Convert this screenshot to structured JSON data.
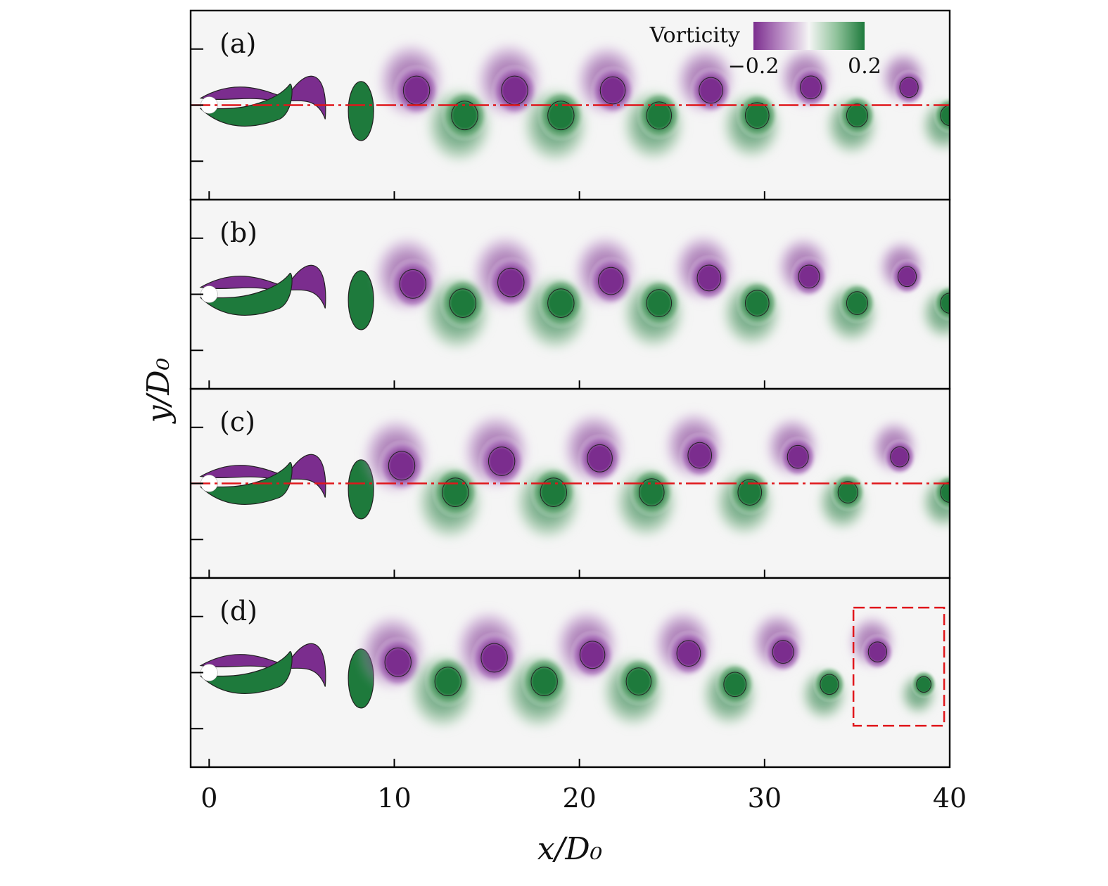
{
  "chart_data": {
    "type": "heatmap",
    "description_free": true,
    "xlabel": "x/D₀",
    "ylabel": "y/D₀",
    "xlim": [
      -1,
      40
    ],
    "x_ticks": [
      0,
      10,
      20,
      30,
      40
    ],
    "x_tick_labels": [
      "0",
      "10",
      "20",
      "30",
      "40"
    ],
    "colorbar": {
      "title": "Vorticity",
      "min": -0.2,
      "max": 0.2,
      "tick_labels": [
        "−0.2",
        "0.2"
      ],
      "color_neg": "#7b2d8e",
      "color_zero": "#f5f5f5",
      "color_pos": "#1e7a3c"
    },
    "panels": [
      {
        "label": "(a)",
        "centerline": true,
        "dashed_box": null,
        "vortices": [
          {
            "x": 11.2,
            "y": 0.5,
            "sign": -1,
            "size": 1.0
          },
          {
            "x": 13.8,
            "y": -0.35,
            "sign": 1,
            "size": 1.0
          },
          {
            "x": 16.5,
            "y": 0.5,
            "sign": -1,
            "size": 1.0
          },
          {
            "x": 19.0,
            "y": -0.35,
            "sign": 1,
            "size": 1.0
          },
          {
            "x": 21.8,
            "y": 0.5,
            "sign": -1,
            "size": 0.95
          },
          {
            "x": 24.3,
            "y": -0.35,
            "sign": 1,
            "size": 0.95
          },
          {
            "x": 27.1,
            "y": 0.5,
            "sign": -1,
            "size": 0.9
          },
          {
            "x": 29.6,
            "y": -0.35,
            "sign": 1,
            "size": 0.9
          },
          {
            "x": 32.5,
            "y": 0.6,
            "sign": -1,
            "size": 0.8
          },
          {
            "x": 35.0,
            "y": -0.35,
            "sign": 1,
            "size": 0.8
          },
          {
            "x": 37.8,
            "y": 0.6,
            "sign": -1,
            "size": 0.7
          },
          {
            "x": 40.0,
            "y": -0.35,
            "sign": 1,
            "size": 0.7
          }
        ]
      },
      {
        "label": "(b)",
        "centerline": false,
        "dashed_box": null,
        "vortices": [
          {
            "x": 11.0,
            "y": 0.35,
            "sign": -1,
            "size": 1.0
          },
          {
            "x": 13.7,
            "y": -0.3,
            "sign": 1,
            "size": 1.0
          },
          {
            "x": 16.3,
            "y": 0.4,
            "sign": -1,
            "size": 1.0
          },
          {
            "x": 19.0,
            "y": -0.3,
            "sign": 1,
            "size": 1.0
          },
          {
            "x": 21.7,
            "y": 0.45,
            "sign": -1,
            "size": 0.95
          },
          {
            "x": 24.3,
            "y": -0.3,
            "sign": 1,
            "size": 0.95
          },
          {
            "x": 27.0,
            "y": 0.55,
            "sign": -1,
            "size": 0.9
          },
          {
            "x": 29.6,
            "y": -0.3,
            "sign": 1,
            "size": 0.9
          },
          {
            "x": 32.4,
            "y": 0.6,
            "sign": -1,
            "size": 0.8
          },
          {
            "x": 35.0,
            "y": -0.3,
            "sign": 1,
            "size": 0.8
          },
          {
            "x": 37.7,
            "y": 0.6,
            "sign": -1,
            "size": 0.7
          },
          {
            "x": 40.0,
            "y": -0.3,
            "sign": 1,
            "size": 0.7
          }
        ]
      },
      {
        "label": "(c)",
        "centerline": true,
        "dashed_box": null,
        "vortices": [
          {
            "x": 10.4,
            "y": 0.6,
            "sign": -1,
            "size": 1.0
          },
          {
            "x": 13.3,
            "y": -0.3,
            "sign": 1,
            "size": 1.0
          },
          {
            "x": 15.8,
            "y": 0.75,
            "sign": -1,
            "size": 1.0
          },
          {
            "x": 18.6,
            "y": -0.3,
            "sign": 1,
            "size": 1.0
          },
          {
            "x": 21.1,
            "y": 0.85,
            "sign": -1,
            "size": 0.95
          },
          {
            "x": 23.9,
            "y": -0.3,
            "sign": 1,
            "size": 0.95
          },
          {
            "x": 26.5,
            "y": 0.95,
            "sign": -1,
            "size": 0.9
          },
          {
            "x": 29.2,
            "y": -0.3,
            "sign": 1,
            "size": 0.9
          },
          {
            "x": 31.8,
            "y": 0.9,
            "sign": -1,
            "size": 0.8
          },
          {
            "x": 34.5,
            "y": -0.3,
            "sign": 1,
            "size": 0.75
          },
          {
            "x": 37.3,
            "y": 0.9,
            "sign": -1,
            "size": 0.7
          },
          {
            "x": 40.0,
            "y": -0.3,
            "sign": 1,
            "size": 0.7
          }
        ]
      },
      {
        "label": "(d)",
        "centerline": false,
        "dashed_box": {
          "x0": 34.8,
          "x1": 39.7,
          "y0": -1.8,
          "y1": 2.2
        },
        "vortices": [
          {
            "x": 10.2,
            "y": 0.35,
            "sign": -1,
            "size": 1.0
          },
          {
            "x": 12.9,
            "y": -0.3,
            "sign": 1,
            "size": 1.0
          },
          {
            "x": 15.4,
            "y": 0.5,
            "sign": -1,
            "size": 1.0
          },
          {
            "x": 18.1,
            "y": -0.3,
            "sign": 1,
            "size": 1.0
          },
          {
            "x": 20.7,
            "y": 0.6,
            "sign": -1,
            "size": 0.95
          },
          {
            "x": 23.2,
            "y": -0.3,
            "sign": 1,
            "size": 0.95
          },
          {
            "x": 25.9,
            "y": 0.65,
            "sign": -1,
            "size": 0.9
          },
          {
            "x": 28.4,
            "y": -0.4,
            "sign": 1,
            "size": 0.85
          },
          {
            "x": 31.0,
            "y": 0.7,
            "sign": -1,
            "size": 0.8
          },
          {
            "x": 33.5,
            "y": -0.4,
            "sign": 1,
            "size": 0.7
          },
          {
            "x": 36.1,
            "y": 0.7,
            "sign": -1,
            "size": 0.7
          },
          {
            "x": 38.6,
            "y": -0.4,
            "sign": 1,
            "size": 0.55
          }
        ]
      }
    ]
  }
}
